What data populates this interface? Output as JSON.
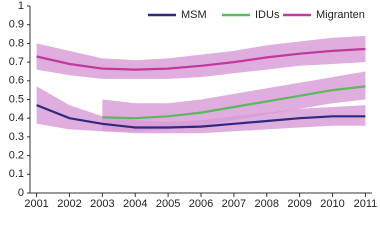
{
  "chart_data": {
    "type": "line",
    "x": [
      2001,
      2002,
      2003,
      2004,
      2005,
      2006,
      2007,
      2008,
      2009,
      2010,
      2011
    ],
    "series": [
      {
        "name": "MSM",
        "color": "#2e2a80",
        "values": [
          0.47,
          0.4,
          0.37,
          0.35,
          0.35,
          0.355,
          0.37,
          0.385,
          0.4,
          0.41,
          0.41
        ],
        "lower": [
          0.37,
          0.34,
          0.33,
          0.32,
          0.32,
          0.32,
          0.33,
          0.34,
          0.35,
          0.36,
          0.36
        ],
        "upper": [
          0.57,
          0.47,
          0.41,
          0.39,
          0.38,
          0.39,
          0.41,
          0.43,
          0.45,
          0.46,
          0.47
        ]
      },
      {
        "name": "IDUs",
        "color": "#5cb85c",
        "values": [
          null,
          null,
          0.405,
          0.4,
          0.41,
          0.43,
          0.46,
          0.49,
          0.52,
          0.55,
          0.57
        ],
        "lower": [
          null,
          null,
          0.33,
          0.33,
          0.34,
          0.36,
          0.39,
          0.42,
          0.45,
          0.48,
          0.5
        ],
        "upper": [
          null,
          null,
          0.5,
          0.48,
          0.48,
          0.5,
          0.53,
          0.56,
          0.59,
          0.62,
          0.65
        ]
      },
      {
        "name": "Migranten",
        "color": "#c0399b",
        "values": [
          0.73,
          0.69,
          0.665,
          0.66,
          0.665,
          0.68,
          0.7,
          0.725,
          0.745,
          0.76,
          0.77
        ],
        "lower": [
          0.66,
          0.63,
          0.61,
          0.61,
          0.61,
          0.62,
          0.64,
          0.66,
          0.68,
          0.69,
          0.7
        ],
        "upper": [
          0.8,
          0.76,
          0.72,
          0.71,
          0.72,
          0.74,
          0.76,
          0.79,
          0.81,
          0.83,
          0.84
        ]
      }
    ],
    "band_color": "#d89ad6",
    "xlim": [
      2000.8,
      2011.2
    ],
    "xticks": [
      2001,
      2002,
      2003,
      2004,
      2005,
      2006,
      2007,
      2008,
      2009,
      2010,
      2011
    ],
    "ylim": [
      0,
      1
    ],
    "yticks": [
      0,
      0.1,
      0.2,
      0.3,
      0.4,
      0.5,
      0.6,
      0.7,
      0.8,
      0.9,
      1
    ],
    "grid": false,
    "legend": "top"
  }
}
